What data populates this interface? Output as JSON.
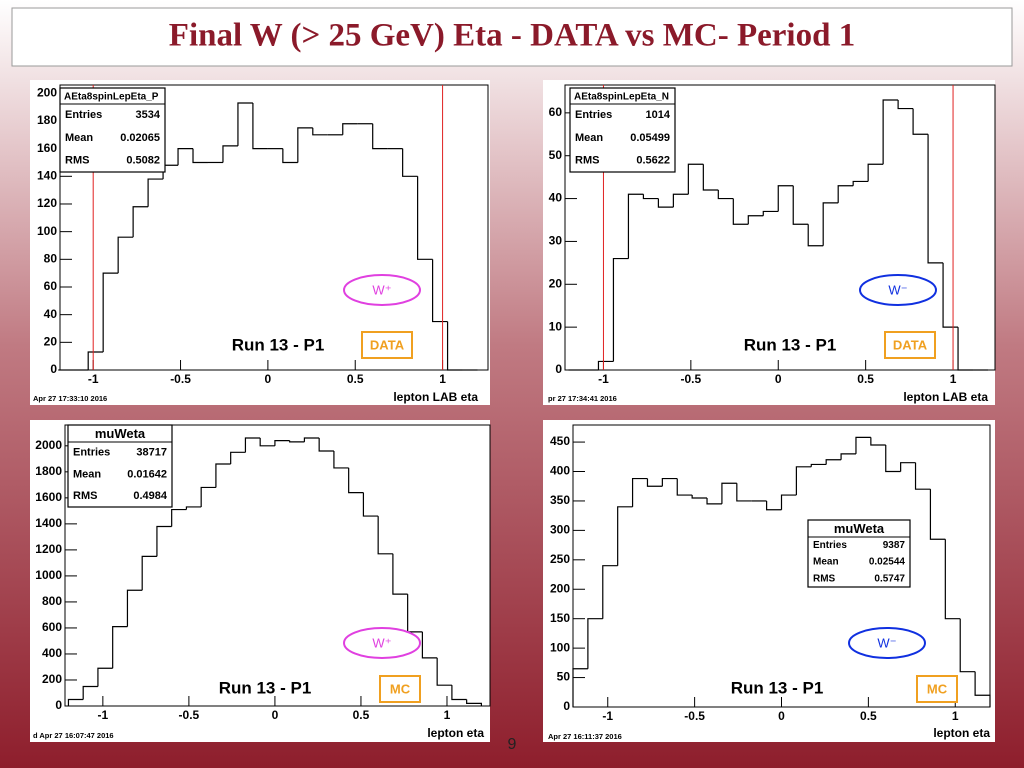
{
  "slide_title": "Final W (> 25 GeV) Eta - DATA vs MC- Period 1",
  "page_number": "9",
  "chart_data": [
    {
      "type": "histogram",
      "xlabel": "lepton LAB eta",
      "timestamp": "Apr 27 17:33:10 2016",
      "run_label": "Run 13 - P1",
      "sample_label": "DATA",
      "charge_label": "W⁺",
      "charge_color": "#e040e0",
      "sample_color": "#f0a020",
      "line_color": "#000000",
      "cut_color": "#e02020",
      "cut_lines": [
        -1,
        1
      ],
      "stats": {
        "title": "AEta8spinLepEta_P",
        "rows": [
          {
            "label": "Entries",
            "value": 3534
          },
          {
            "label": "Mean",
            "value": 0.02065
          },
          {
            "label": "RMS",
            "value": 0.5082
          }
        ]
      },
      "bins": [
        -1.2,
        -1.1143,
        -1.0286,
        -0.9429,
        -0.8571,
        -0.7714,
        -0.6857,
        -0.6,
        -0.5143,
        -0.4286,
        -0.3429,
        -0.2571,
        -0.1714,
        -0.0857,
        0,
        0.0857,
        0.1714,
        0.2571,
        0.3429,
        0.4286,
        0.5143,
        0.6,
        0.6857,
        0.7714,
        0.8571,
        0.9429,
        1.0286,
        1.1143,
        1.2
      ],
      "values": [
        0,
        0,
        13,
        70,
        96,
        118,
        138,
        148,
        160,
        150,
        150,
        162,
        193,
        160,
        160,
        150,
        175,
        170,
        170,
        178,
        178,
        160,
        160,
        140,
        80,
        35,
        0,
        0
      ],
      "xlim": [
        -1.19,
        1.26
      ],
      "ylim": [
        0,
        206
      ],
      "xticks": [
        -1,
        -0.5,
        0,
        0.5,
        1
      ],
      "yticks": [
        0,
        20,
        40,
        60,
        80,
        100,
        120,
        140,
        160,
        180,
        200
      ]
    },
    {
      "type": "histogram",
      "xlabel": "lepton LAB eta",
      "timestamp": "pr 27 17:34:41 2016",
      "run_label": "Run 13 - P1",
      "sample_label": "DATA",
      "charge_label": "W⁻",
      "charge_color": "#1030e0",
      "sample_color": "#f0a020",
      "line_color": "#000000",
      "cut_color": "#e02020",
      "cut_lines": [
        -1,
        1
      ],
      "stats": {
        "title": "AEta8spinLepEta_N",
        "rows": [
          {
            "label": "Entries",
            "value": 1014
          },
          {
            "label": "Mean",
            "value": 0.05499
          },
          {
            "label": "RMS",
            "value": 0.5622
          }
        ]
      },
      "bins": [
        -1.2,
        -1.1143,
        -1.0286,
        -0.9429,
        -0.8571,
        -0.7714,
        -0.6857,
        -0.6,
        -0.5143,
        -0.4286,
        -0.3429,
        -0.2571,
        -0.1714,
        -0.0857,
        0,
        0.0857,
        0.1714,
        0.2571,
        0.3429,
        0.4286,
        0.5143,
        0.6,
        0.6857,
        0.7714,
        0.8571,
        0.9429,
        1.0286,
        1.1143,
        1.2
      ],
      "values": [
        0,
        0,
        2,
        26,
        41,
        40,
        38,
        41,
        48,
        42,
        40,
        34,
        36,
        37,
        43,
        34,
        29,
        39,
        43,
        44,
        48,
        63,
        61,
        55,
        25,
        10,
        0,
        0
      ],
      "xlim": [
        -1.22,
        1.24
      ],
      "ylim": [
        0,
        66.5
      ],
      "xticks": [
        -1,
        -0.5,
        0,
        0.5,
        1
      ],
      "yticks": [
        0,
        10,
        20,
        30,
        40,
        50,
        60
      ]
    },
    {
      "type": "histogram",
      "xlabel": "lepton eta",
      "timestamp": "d Apr 27 16:07:47 2016",
      "run_label": "Run 13 - P1",
      "sample_label": "MC",
      "charge_label": "W⁺",
      "charge_color": "#e040e0",
      "sample_color": "#f0a020",
      "line_color": "#000000",
      "stats": {
        "title": "muWeta",
        "rows": [
          {
            "label": "Entries",
            "value": 38717
          },
          {
            "label": "Mean",
            "value": 0.01642
          },
          {
            "label": "RMS",
            "value": 0.4984
          }
        ]
      },
      "bins": [
        -1.2,
        -1.1143,
        -1.0286,
        -0.9429,
        -0.8571,
        -0.7714,
        -0.6857,
        -0.6,
        -0.5143,
        -0.4286,
        -0.3429,
        -0.2571,
        -0.1714,
        -0.0857,
        0,
        0.0857,
        0.1714,
        0.2571,
        0.3429,
        0.4286,
        0.5143,
        0.6,
        0.6857,
        0.7714,
        0.8571,
        0.9429,
        1.0286,
        1.1143,
        1.2
      ],
      "values": [
        50,
        150,
        290,
        610,
        890,
        1150,
        1380,
        1510,
        1530,
        1680,
        1860,
        1950,
        2060,
        2000,
        2040,
        2030,
        2060,
        1960,
        1830,
        1640,
        1460,
        1170,
        860,
        570,
        370,
        160,
        50,
        20
      ],
      "xlim": [
        -1.22,
        1.25
      ],
      "ylim": [
        0,
        2160
      ],
      "xticks": [
        -1,
        -0.5,
        0,
        0.5,
        1
      ],
      "yticks": [
        0,
        200,
        400,
        600,
        800,
        1000,
        1200,
        1400,
        1600,
        1800,
        2000
      ]
    },
    {
      "type": "histogram",
      "xlabel": "lepton eta",
      "timestamp": "Apr 27 16:11:37 2016",
      "run_label": "Run 13 - P1",
      "sample_label": "MC",
      "charge_label": "W⁻",
      "charge_color": "#1030e0",
      "sample_color": "#f0a020",
      "line_color": "#000000",
      "stats": {
        "title": "muWeta",
        "rows": [
          {
            "label": "Entries",
            "value": 9387
          },
          {
            "label": "Mean",
            "value": 0.02544
          },
          {
            "label": "RMS",
            "value": 0.5747
          }
        ]
      },
      "bins": [
        -1.2,
        -1.1143,
        -1.0286,
        -0.9429,
        -0.8571,
        -0.7714,
        -0.6857,
        -0.6,
        -0.5143,
        -0.4286,
        -0.3429,
        -0.2571,
        -0.1714,
        -0.0857,
        0,
        0.0857,
        0.1714,
        0.2571,
        0.3429,
        0.4286,
        0.5143,
        0.6,
        0.6857,
        0.7714,
        0.8571,
        0.9429,
        1.0286,
        1.1143,
        1.2
      ],
      "values": [
        65,
        150,
        240,
        340,
        388,
        375,
        388,
        360,
        355,
        345,
        380,
        350,
        350,
        335,
        360,
        408,
        412,
        420,
        430,
        458,
        445,
        400,
        415,
        370,
        285,
        150,
        60,
        20
      ],
      "xlim": [
        -1.2,
        1.2
      ],
      "ylim": [
        0,
        479
      ],
      "xticks": [
        -1,
        -0.5,
        0,
        0.5,
        1
      ],
      "yticks": [
        0,
        50,
        100,
        150,
        200,
        250,
        300,
        350,
        400,
        450
      ]
    }
  ]
}
